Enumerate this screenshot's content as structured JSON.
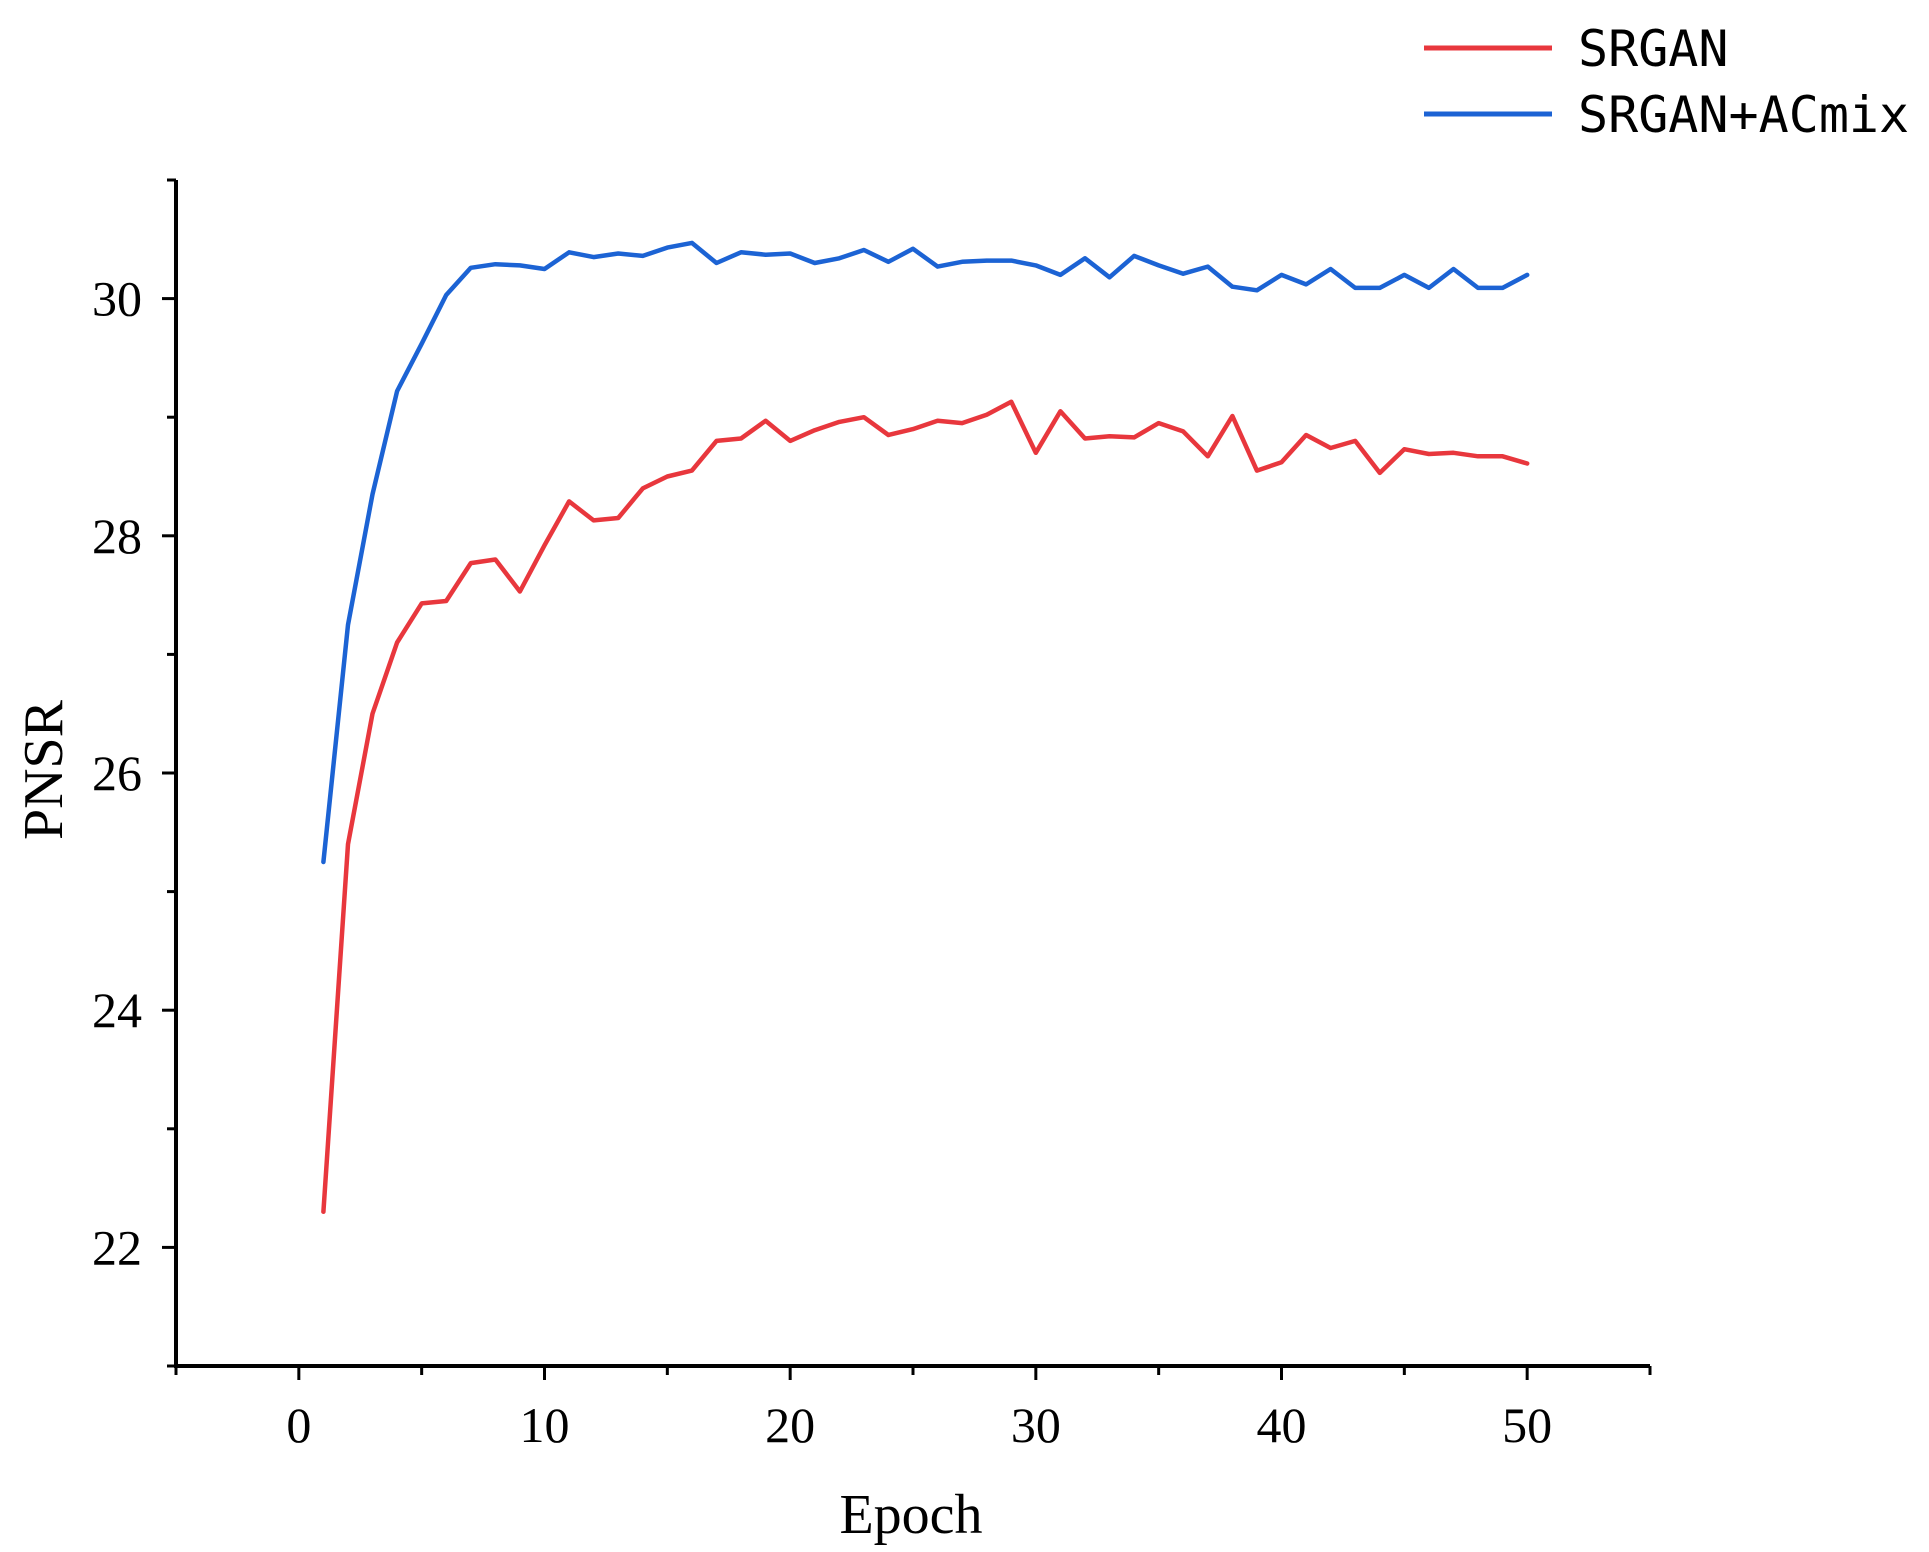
{
  "chart_data": {
    "type": "line",
    "xlabel": "Epoch",
    "ylabel": "PNSR",
    "xlim": [
      -5,
      55
    ],
    "ylim": [
      21,
      31
    ],
    "xticks": [
      0,
      10,
      20,
      30,
      40,
      50
    ],
    "yticks": [
      22,
      24,
      26,
      28,
      30
    ],
    "legend_position": "top-right",
    "grid": false,
    "x": [
      1,
      2,
      3,
      4,
      5,
      6,
      7,
      8,
      9,
      10,
      11,
      12,
      13,
      14,
      15,
      16,
      17,
      18,
      19,
      20,
      21,
      22,
      23,
      24,
      25,
      26,
      27,
      28,
      29,
      30,
      31,
      32,
      33,
      34,
      35,
      36,
      37,
      38,
      39,
      40,
      41,
      42,
      43,
      44,
      45,
      46,
      47,
      48,
      49,
      50
    ],
    "series": [
      {
        "name": "SRGAN",
        "color": "#e8373d",
        "values": [
          22.3,
          25.4,
          26.5,
          27.1,
          27.43,
          27.45,
          27.77,
          27.8,
          27.53,
          27.92,
          28.29,
          28.13,
          28.15,
          28.4,
          28.5,
          28.55,
          28.8,
          28.82,
          28.97,
          28.8,
          28.89,
          28.96,
          29.0,
          28.85,
          28.9,
          28.97,
          28.95,
          29.02,
          29.13,
          28.7,
          29.05,
          28.82,
          28.84,
          28.83,
          28.95,
          28.88,
          28.67,
          29.01,
          28.55,
          28.62,
          28.85,
          28.74,
          28.8,
          28.53,
          28.73,
          28.69,
          28.7,
          28.67,
          28.67,
          28.61
        ]
      },
      {
        "name": "SRGAN+ACmix",
        "color": "#1c63d4",
        "values": [
          25.25,
          27.25,
          28.35,
          29.22,
          29.62,
          30.03,
          30.26,
          30.29,
          30.28,
          30.25,
          30.39,
          30.35,
          30.38,
          30.36,
          30.43,
          30.47,
          30.3,
          30.39,
          30.37,
          30.38,
          30.3,
          30.34,
          30.41,
          30.31,
          30.42,
          30.27,
          30.31,
          30.32,
          30.32,
          30.28,
          30.2,
          30.34,
          30.18,
          30.36,
          30.28,
          30.21,
          30.27,
          30.1,
          30.07,
          30.2,
          30.12,
          30.25,
          30.09,
          30.09,
          30.2,
          30.09,
          30.25,
          30.09,
          30.09,
          30.2
        ]
      }
    ]
  }
}
